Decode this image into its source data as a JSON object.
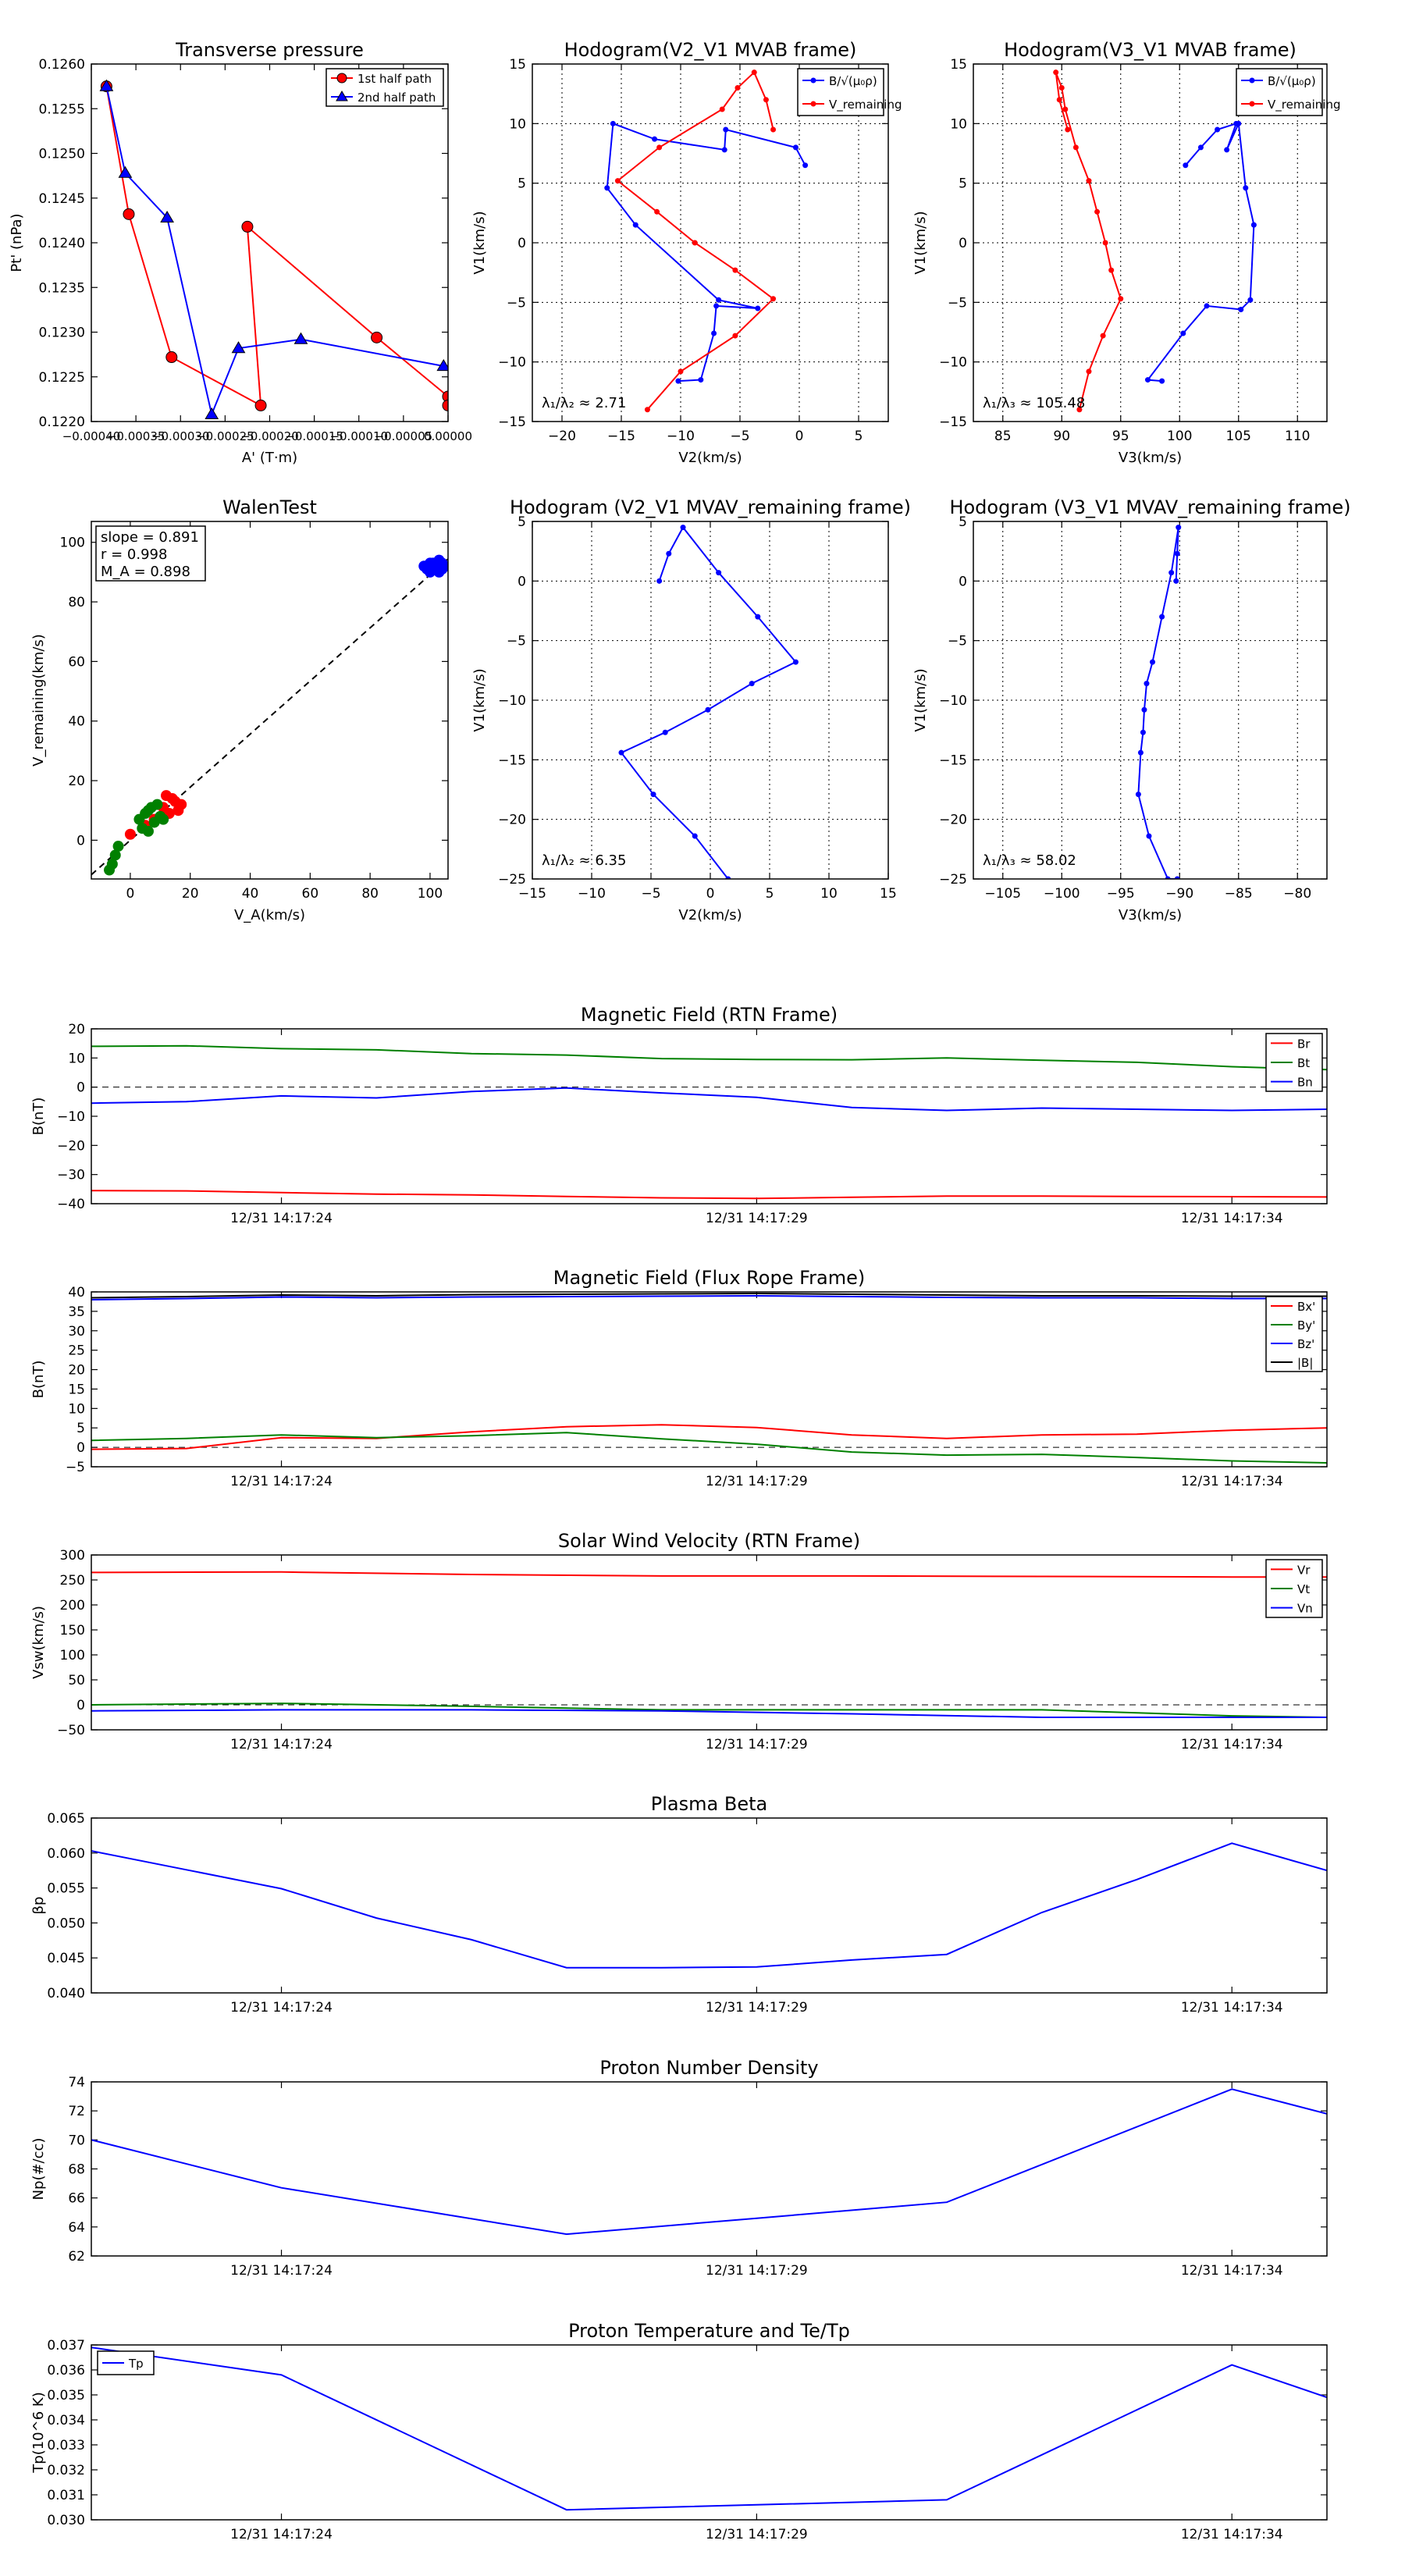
{
  "figure_title": "",
  "chart_data": [
    {
      "id": "tp",
      "type": "scatter",
      "title": "Transverse pressure",
      "xlabel": "A' (T·m)",
      "ylabel": "Pt' (nPa)",
      "xlim": [
        -0.0004,
        0.0
      ],
      "ylim": [
        0.122,
        0.126
      ],
      "xticks": [
        -0.0004,
        -0.00035,
        -0.0003,
        -0.00025,
        -0.0002,
        -0.00015,
        -0.0001,
        -5e-05,
        0.0
      ],
      "xticklabels": [
        "−0.00040",
        "−0.00035",
        "−0.00030",
        "−0.00025",
        "−0.00020",
        "−0.00015",
        "−0.00010",
        "−0.00005",
        "0.00000"
      ],
      "yticks": [
        0.122,
        0.1225,
        0.123,
        0.1235,
        0.124,
        0.1245,
        0.125,
        0.1255,
        0.126
      ],
      "yticklabels": [
        "0.1220",
        "0.1225",
        "0.1230",
        "0.1235",
        "0.1240",
        "0.1245",
        "0.1250",
        "0.1255",
        "0.1260"
      ],
      "legend": "top-right",
      "series": [
        {
          "name": "1st half path",
          "color": "#ff0000",
          "marker": "circle",
          "x": [
            -0.000383,
            -0.000358,
            -0.00031,
            -0.00021,
            -0.000225,
            -8e-05,
            -0.0,
            -0.0
          ],
          "y": [
            0.12575,
            0.12432,
            0.12272,
            0.12218,
            0.12418,
            0.12294,
            0.12228,
            0.12218
          ]
        },
        {
          "name": "2nd half path",
          "color": "#0000ff",
          "marker": "triangle",
          "x": [
            -0.000383,
            -0.000362,
            -0.000315,
            -0.000265,
            -0.000235,
            -0.000165,
            -5e-06
          ],
          "y": [
            0.12575,
            0.12478,
            0.12428,
            0.12208,
            0.12282,
            0.12292,
            0.12262
          ]
        }
      ]
    },
    {
      "id": "h1",
      "type": "line",
      "title": "Hodogram(V2_V1 MVAB frame)",
      "xlabel": "V2(km/s)",
      "ylabel": "V1(km/s)",
      "xlim": [
        -22.5,
        7.5
      ],
      "ylim": [
        -15,
        15
      ],
      "xticks": [
        -20,
        -15,
        -10,
        -5,
        0,
        5
      ],
      "yticks": [
        -15,
        -10,
        -5,
        0,
        5,
        10,
        15
      ],
      "grid": true,
      "legend": "top-right",
      "annotation": "λ₁/λ₂ ≈ 2.71",
      "series": [
        {
          "name": "B/√(μ₀ρ)",
          "color": "#0000ff",
          "x": [
            0.5,
            -0.3,
            -6.2,
            -6.3,
            -12.2,
            -15.7,
            -16.2,
            -13.8,
            -6.8,
            -3.5,
            -7.0,
            -7.2,
            -8.3,
            -10.2
          ],
          "y": [
            6.5,
            8.0,
            9.5,
            7.8,
            8.7,
            10.0,
            4.6,
            1.5,
            -4.8,
            -5.5,
            -5.3,
            -7.6,
            -11.5,
            -11.6
          ]
        },
        {
          "name": "V_remaining",
          "color": "#ff0000",
          "x": [
            -2.2,
            -2.8,
            -3.8,
            -5.2,
            -6.5,
            -11.8,
            -15.3,
            -12.0,
            -8.8,
            -5.4,
            -2.2,
            -5.4,
            -10.0,
            -12.8
          ],
          "y": [
            9.5,
            12.0,
            14.3,
            13.0,
            11.2,
            8.0,
            5.2,
            2.6,
            0.0,
            -2.3,
            -4.7,
            -7.8,
            -10.8,
            -14.0
          ]
        }
      ]
    },
    {
      "id": "h2",
      "type": "line",
      "title": "Hodogram(V3_V1 MVAB frame)",
      "xlabel": "V3(km/s)",
      "ylabel": "V1(km/s)",
      "xlim": [
        82.5,
        112.5
      ],
      "ylim": [
        -15,
        15
      ],
      "xticks": [
        85,
        90,
        95,
        100,
        105,
        110
      ],
      "yticks": [
        -15,
        -10,
        -5,
        0,
        5,
        10,
        15
      ],
      "grid": true,
      "legend": "top-right",
      "annotation": "λ₁/λ₃ ≈ 105.48",
      "series": [
        {
          "name": "B/√(μ₀ρ)",
          "color": "#0000ff",
          "x": [
            100.5,
            101.8,
            103.2,
            104.8,
            104.0,
            105.0,
            105.6,
            106.3,
            106.0,
            105.2,
            102.3,
            100.3,
            97.3,
            98.5
          ],
          "y": [
            6.5,
            8.0,
            9.5,
            10.0,
            7.8,
            10.0,
            4.6,
            1.5,
            -4.8,
            -5.6,
            -5.3,
            -7.6,
            -11.5,
            -11.6
          ]
        },
        {
          "name": "V_remaining",
          "color": "#ff0000",
          "x": [
            90.5,
            89.8,
            89.5,
            90.0,
            90.3,
            91.2,
            92.3,
            93.0,
            93.7,
            94.2,
            95.0,
            93.5,
            92.3,
            91.5
          ],
          "y": [
            9.5,
            12.0,
            14.3,
            13.0,
            11.2,
            8.0,
            5.2,
            2.6,
            0.0,
            -2.3,
            -4.7,
            -7.8,
            -10.8,
            -14.0
          ]
        }
      ]
    },
    {
      "id": "wt",
      "type": "scatter",
      "title": "WalenTest",
      "xlabel": "V_A(km/s)",
      "ylabel": "V_remaining(km/s)",
      "xlim": [
        -13,
        106
      ],
      "ylim": [
        -13,
        107
      ],
      "xticks": [
        0,
        20,
        40,
        60,
        80,
        100
      ],
      "yticks": [
        0,
        20,
        40,
        60,
        80,
        100
      ],
      "stats": [
        "slope = 0.891",
        "r = 0.998",
        "M_A = 0.898"
      ],
      "fit_slope": 0.891,
      "series": [
        {
          "name": "red",
          "color": "#ff0000",
          "x": [
            12,
            14,
            17,
            15,
            13,
            16,
            8,
            0,
            5,
            11
          ],
          "y": [
            15,
            14,
            12,
            13,
            9,
            10,
            7,
            2,
            5,
            11
          ]
        },
        {
          "name": "green",
          "color": "#008000",
          "x": [
            -7,
            -6,
            -5,
            -4,
            6,
            8,
            10,
            5,
            7,
            9,
            11,
            4,
            6,
            3
          ],
          "y": [
            -10,
            -8,
            -5,
            -2,
            3,
            6,
            8,
            9,
            11,
            12,
            7,
            4,
            10,
            7
          ]
        },
        {
          "name": "blue",
          "color": "#0000ff",
          "x": [
            98,
            99,
            100,
            101,
            102,
            103,
            104,
            105,
            100,
            102,
            104,
            101,
            103
          ],
          "y": [
            92,
            91,
            93,
            92,
            91,
            94,
            93,
            92,
            90,
            92,
            91,
            93,
            90
          ]
        }
      ]
    },
    {
      "id": "h3",
      "type": "line",
      "title": "Hodogram (V2_V1 MVAV_remaining frame)",
      "xlabel": "V2(km/s)",
      "ylabel": "V1(km/s)",
      "xlim": [
        -15,
        15
      ],
      "ylim": [
        -25,
        5
      ],
      "xticks": [
        -15,
        -10,
        -5,
        0,
        5,
        10,
        15
      ],
      "yticks": [
        -25,
        -20,
        -15,
        -10,
        -5,
        0,
        5
      ],
      "grid": true,
      "annotation": "λ₁/λ₂ ≈ 6.35",
      "series": [
        {
          "name": "V",
          "color": "#0000ff",
          "x": [
            -4.3,
            -3.5,
            -2.3,
            0.7,
            4.0,
            7.2,
            3.5,
            -0.2,
            -3.8,
            -7.5,
            -4.8,
            -1.3,
            1.5
          ],
          "y": [
            0.0,
            2.3,
            4.5,
            0.7,
            -3.0,
            -6.8,
            -8.6,
            -10.8,
            -12.7,
            -14.4,
            -17.9,
            -21.4,
            -25.0
          ]
        }
      ]
    },
    {
      "id": "h4",
      "type": "line",
      "title": "Hodogram (V3_V1 MVAV_remaining frame)",
      "xlabel": "V3(km/s)",
      "ylabel": "V1(km/s)",
      "xlim": [
        -107.5,
        -77.5
      ],
      "ylim": [
        -25,
        5
      ],
      "xticks": [
        -105,
        -100,
        -95,
        -90,
        -85,
        -80
      ],
      "yticks": [
        -25,
        -20,
        -15,
        -10,
        -5,
        0,
        5
      ],
      "grid": true,
      "annotation": "λ₁/λ₃ ≈ 58.02",
      "series": [
        {
          "name": "V",
          "color": "#0000ff",
          "x": [
            -90.3,
            -90.2,
            -90.1,
            -90.7,
            -91.5,
            -92.3,
            -92.8,
            -93.0,
            -93.1,
            -93.3,
            -93.5,
            -92.6,
            -91.0,
            -90.2
          ],
          "y": [
            0.0,
            2.3,
            4.5,
            0.7,
            -3.0,
            -6.8,
            -8.6,
            -10.8,
            -12.7,
            -14.4,
            -17.9,
            -21.4,
            -25.0,
            -25.0
          ]
        }
      ]
    },
    {
      "id": "ts1",
      "type": "line",
      "title": "Magnetic Field (RTN Frame)",
      "ylabel": "B(nT)",
      "xlim": [
        0,
        13
      ],
      "ylim": [
        -40,
        20
      ],
      "yticks": [
        -40,
        -30,
        -20,
        -10,
        0,
        10,
        20
      ],
      "xticks": [
        2,
        7,
        12
      ],
      "xticklabels": [
        "12/31 14:17:24",
        "12/31 14:17:29",
        "12/31 14:17:34"
      ],
      "zero_line": true,
      "legend": "top-right",
      "x": [
        0,
        1,
        2,
        3,
        4,
        5,
        6,
        7,
        8,
        9,
        10,
        11,
        12,
        13
      ],
      "series": [
        {
          "name": "Br",
          "color": "#ff0000",
          "values": [
            -35.5,
            -35.6,
            -36.2,
            -36.7,
            -37.0,
            -37.5,
            -38.0,
            -38.2,
            -37.8,
            -37.4,
            -37.4,
            -37.5,
            -37.6,
            -37.7
          ]
        },
        {
          "name": "Bt",
          "color": "#008000",
          "values": [
            14.0,
            14.2,
            13.2,
            12.8,
            11.5,
            11.0,
            9.8,
            9.5,
            9.4,
            10.0,
            9.2,
            8.5,
            7.0,
            6.0
          ]
        },
        {
          "name": "Bn",
          "color": "#0000ff",
          "values": [
            -5.5,
            -5.0,
            -3.0,
            -3.7,
            -1.5,
            -0.3,
            -2.0,
            -3.5,
            -7.0,
            -8.0,
            -7.2,
            -7.6,
            -8.0,
            -7.6
          ]
        }
      ]
    },
    {
      "id": "ts2",
      "type": "line",
      "title": "Magnetic Field (Flux Rope Frame)",
      "ylabel": "B(nT)",
      "xlim": [
        0,
        13
      ],
      "ylim": [
        -5,
        40
      ],
      "yticks": [
        -5,
        0,
        5,
        10,
        15,
        20,
        25,
        30,
        35,
        40
      ],
      "xticks": [
        2,
        7,
        12
      ],
      "xticklabels": [
        "12/31 14:17:24",
        "12/31 14:17:29",
        "12/31 14:17:34"
      ],
      "zero_line": true,
      "legend": "top-right",
      "x": [
        0,
        1,
        2,
        3,
        4,
        5,
        6,
        7,
        8,
        9,
        10,
        11,
        12,
        13
      ],
      "series": [
        {
          "name": "Bx'",
          "color": "#ff0000",
          "values": [
            -0.5,
            -0.3,
            2.5,
            2.3,
            4.0,
            5.3,
            5.8,
            5.1,
            3.2,
            2.3,
            3.2,
            3.4,
            4.4,
            5.0
          ]
        },
        {
          "name": "By'",
          "color": "#008000",
          "values": [
            1.8,
            2.3,
            3.2,
            2.5,
            3.0,
            3.8,
            2.2,
            0.8,
            -1.2,
            -2.0,
            -1.8,
            -2.6,
            -3.5,
            -4.0
          ]
        },
        {
          "name": "Bz'",
          "color": "#0000ff",
          "values": [
            38.0,
            38.3,
            38.7,
            38.5,
            38.7,
            38.8,
            38.9,
            39.0,
            38.8,
            38.6,
            38.5,
            38.5,
            38.3,
            38.3
          ]
        },
        {
          "name": "|B|",
          "color": "#000000",
          "values": [
            38.5,
            38.8,
            39.2,
            39.0,
            39.3,
            39.4,
            39.5,
            39.6,
            39.4,
            39.2,
            39.0,
            39.0,
            38.9,
            38.9
          ]
        }
      ]
    },
    {
      "id": "ts3",
      "type": "line",
      "title": "Solar Wind Velocity (RTN Frame)",
      "ylabel": "Vsw(km/s)",
      "xlim": [
        0,
        13
      ],
      "ylim": [
        -50,
        300
      ],
      "yticks": [
        -50,
        0,
        50,
        100,
        150,
        200,
        250,
        300
      ],
      "xticks": [
        2,
        7,
        12
      ],
      "xticklabels": [
        "12/31 14:17:24",
        "12/31 14:17:29",
        "12/31 14:17:34"
      ],
      "zero_line": true,
      "legend": "top-right",
      "x": [
        0,
        2,
        4,
        6,
        8,
        10,
        12,
        13
      ],
      "series": [
        {
          "name": "Vr",
          "color": "#ff0000",
          "values": [
            265,
            266,
            261,
            258,
            258,
            257,
            256,
            256
          ]
        },
        {
          "name": "Vt",
          "color": "#008000",
          "values": [
            0,
            3,
            -3,
            -10,
            -10,
            -10,
            -22,
            -25
          ]
        },
        {
          "name": "Vn",
          "color": "#0000ff",
          "values": [
            -12,
            -10,
            -10,
            -12,
            -18,
            -25,
            -25,
            -25
          ]
        }
      ]
    },
    {
      "id": "ts4",
      "type": "line",
      "title": "Plasma Beta",
      "ylabel": "βp",
      "xlim": [
        0,
        13
      ],
      "ylim": [
        0.04,
        0.065
      ],
      "yticks": [
        0.04,
        0.045,
        0.05,
        0.055,
        0.06,
        0.065
      ],
      "yticklabels": [
        "0.040",
        "0.045",
        "0.050",
        "0.055",
        "0.060",
        "0.065"
      ],
      "xticks": [
        2,
        7,
        12
      ],
      "xticklabels": [
        "12/31 14:17:24",
        "12/31 14:17:29",
        "12/31 14:17:34"
      ],
      "x": [
        0,
        1,
        2,
        3,
        4,
        5,
        6,
        7,
        8,
        9,
        10,
        11,
        12,
        13
      ],
      "series": [
        {
          "name": "beta",
          "color": "#0000ff",
          "values": [
            0.0603,
            0.0576,
            0.0549,
            0.0507,
            0.0476,
            0.0436,
            0.0436,
            0.0437,
            0.0447,
            0.0455,
            0.0515,
            0.0562,
            0.0614,
            0.0575
          ]
        }
      ]
    },
    {
      "id": "ts5",
      "type": "line",
      "title": "Proton Number Density",
      "ylabel": "Np(#/cc)",
      "xlim": [
        0,
        13
      ],
      "ylim": [
        62,
        74
      ],
      "yticks": [
        62,
        64,
        66,
        68,
        70,
        72,
        74
      ],
      "xticks": [
        2,
        7,
        12
      ],
      "xticklabels": [
        "12/31 14:17:24",
        "12/31 14:17:29",
        "12/31 14:17:34"
      ],
      "x": [
        0,
        2,
        5,
        7,
        9,
        12,
        13
      ],
      "series": [
        {
          "name": "Np",
          "color": "#0000ff",
          "values": [
            70.0,
            66.7,
            63.5,
            64.6,
            65.7,
            73.5,
            71.8
          ]
        }
      ]
    },
    {
      "id": "ts6",
      "type": "line",
      "title": "Proton Temperature and Te/Tp",
      "ylabel": "Tp(10^6 K)",
      "xlim": [
        0,
        13
      ],
      "ylim": [
        0.03,
        0.037
      ],
      "yticks": [
        0.03,
        0.031,
        0.032,
        0.033,
        0.034,
        0.035,
        0.036,
        0.037
      ],
      "yticklabels": [
        "0.030",
        "0.031",
        "0.032",
        "0.033",
        "0.034",
        "0.035",
        "0.036",
        "0.037"
      ],
      "xticks": [
        2,
        7,
        12
      ],
      "xticklabels": [
        "12/31 14:17:24",
        "12/31 14:17:29",
        "12/31 14:17:34"
      ],
      "legend": "top-left",
      "x": [
        0,
        2,
        5,
        7,
        9,
        12,
        13
      ],
      "series": [
        {
          "name": "Tp",
          "color": "#0000ff",
          "values": [
            0.0369,
            0.0358,
            0.0304,
            0.0306,
            0.0308,
            0.0362,
            0.0349
          ]
        }
      ]
    }
  ]
}
